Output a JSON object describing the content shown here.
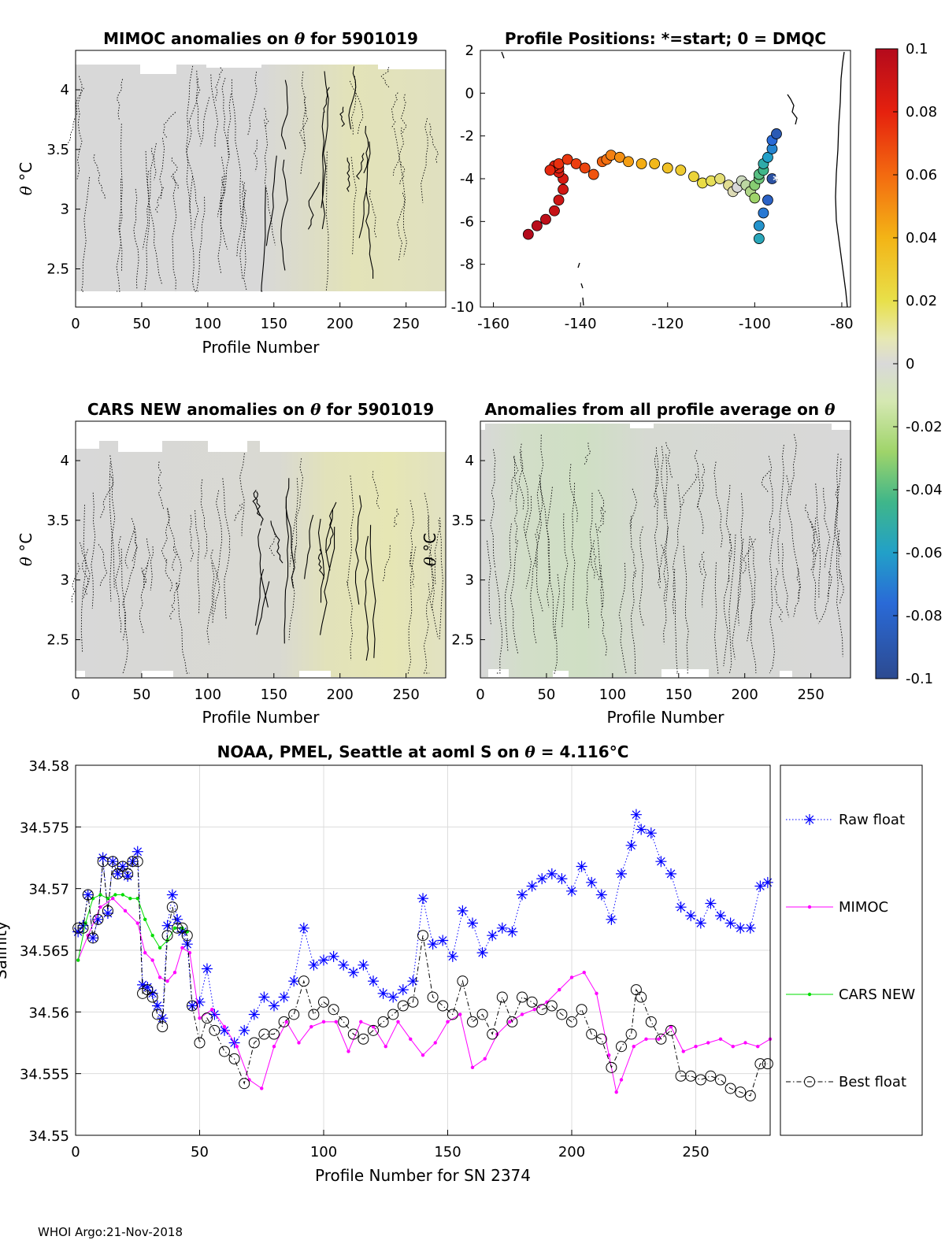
{
  "footer": "WHOI Argo:21-Nov-2018",
  "panels": {
    "mimoc": {
      "title_pre": "MIMOC anomalies on ",
      "title_theta": "θ",
      "title_post": "  for 5901019",
      "ylabel_theta": "θ",
      "ylabel_unit": "°C",
      "xlabel": "Profile Number",
      "xticks": [
        "0",
        "50",
        "100",
        "150",
        "200",
        "250"
      ],
      "yticks": [
        "2.5",
        "3",
        "3.5",
        "4"
      ],
      "xlim": [
        0,
        280
      ],
      "ylim": [
        2.18,
        4.33
      ]
    },
    "positions": {
      "title": "Profile Positions: *=start; 0 = DMQC",
      "xticks": [
        "-160",
        "-140",
        "-120",
        "-100",
        "-80"
      ],
      "yticks": [
        "2",
        "0",
        "-2",
        "-4",
        "-6",
        "-8",
        "-10"
      ],
      "xlim": [
        -163,
        -78
      ],
      "ylim": [
        -10,
        2
      ],
      "start_marker": "*",
      "track": {
        "lon": [
          -152,
          -150,
          -148,
          -146,
          -145,
          -144,
          -144,
          -145,
          -145,
          -146,
          -147,
          -145,
          -143,
          -141,
          -139,
          -137,
          -135,
          -134,
          -133,
          -131,
          -129,
          -126,
          -123,
          -120,
          -117,
          -114,
          -112,
          -110,
          -108,
          -106,
          -105,
          -104,
          -103,
          -102,
          -101,
          -100,
          -100,
          -99,
          -99,
          -98,
          -98,
          -97,
          -96,
          -96,
          -95,
          -96,
          -97,
          -98,
          -99,
          -99
        ],
        "lat": [
          -6.6,
          -6.2,
          -5.9,
          -5.5,
          -5.0,
          -4.5,
          -4.0,
          -3.7,
          -3.5,
          -3.4,
          -3.6,
          -3.3,
          -3.1,
          -3.3,
          -3.5,
          -3.8,
          -3.2,
          -3.1,
          -2.9,
          -3.0,
          -3.2,
          -3.3,
          -3.3,
          -3.5,
          -3.6,
          -3.9,
          -4.2,
          -4.1,
          -4.0,
          -4.3,
          -4.6,
          -4.4,
          -4.1,
          -4.3,
          -4.6,
          -4.9,
          -4.3,
          -4.0,
          -3.8,
          -3.6,
          -3.3,
          -3.0,
          -2.6,
          -2.2,
          -1.9,
          -4.0,
          -5.0,
          -5.6,
          -6.2,
          -6.8
        ],
        "anomaly": [
          0.1,
          0.098,
          0.096,
          0.093,
          0.09,
          0.088,
          0.086,
          0.084,
          0.082,
          0.08,
          0.078,
          0.076,
          0.074,
          0.072,
          0.07,
          0.066,
          0.062,
          0.058,
          0.054,
          0.05,
          0.046,
          0.042,
          0.038,
          0.034,
          0.03,
          0.026,
          0.022,
          0.018,
          0.014,
          0.01,
          0.005,
          0.0,
          -0.005,
          -0.01,
          -0.015,
          -0.02,
          -0.025,
          -0.03,
          -0.035,
          -0.04,
          -0.05,
          -0.06,
          -0.07,
          -0.08,
          -0.09,
          -0.095,
          -0.085,
          -0.075,
          -0.065,
          -0.055
        ]
      }
    },
    "cars": {
      "title_pre": "CARS NEW anomalies on ",
      "title_theta": "θ",
      "title_post": " for 5901019",
      "ylabel_theta": "θ",
      "ylabel_unit": "°C",
      "xlabel": "Profile Number",
      "xticks": [
        "0",
        "50",
        "100",
        "150",
        "200",
        "250"
      ],
      "yticks": [
        "2.5",
        "3",
        "3.5",
        "4"
      ],
      "xlim": [
        0,
        280
      ],
      "ylim": [
        2.18,
        4.33
      ]
    },
    "allprof": {
      "title_pre": "Anomalies from all profile average on ",
      "title_theta": "θ",
      "ylabel_theta": "θ",
      "ylabel_unit": "°C",
      "xlabel": "Profile Number",
      "xticks": [
        "0",
        "50",
        "100",
        "150",
        "200",
        "250"
      ],
      "yticks": [
        "2.5",
        "3",
        "3.5",
        "4"
      ],
      "xlim": [
        0,
        280
      ],
      "ylim": [
        2.18,
        4.33
      ]
    },
    "colorbar": {
      "ticks": [
        "0.1",
        "0.08",
        "0.06",
        "0.04",
        "0.02",
        "0",
        "-0.02",
        "-0.04",
        "-0.06",
        "-0.08",
        "-0.1"
      ],
      "range": [
        -0.1,
        0.1
      ]
    }
  },
  "chart_data": {
    "type": "line",
    "title_pre": "NOAA, PMEL, Seattle at aoml S on ",
    "title_theta": "θ",
    "title_post": " = 4.116°C",
    "xlabel": "Profile Number for SN 2374",
    "ylabel": "Salinity",
    "xlim": [
      0,
      280
    ],
    "ylim": [
      34.55,
      34.58
    ],
    "xticks": [
      "0",
      "50",
      "100",
      "150",
      "200",
      "250"
    ],
    "yticks": [
      "34.55",
      "34.555",
      "34.56",
      "34.565",
      "34.57",
      "34.575",
      "34.58"
    ],
    "grid": true,
    "legend_position": "right-outside",
    "series": [
      {
        "name": "Raw float",
        "color": "#0000ff",
        "x": [
          1,
          3,
          5,
          7,
          9,
          11,
          13,
          15,
          17,
          19,
          21,
          23,
          25,
          27,
          29,
          31,
          33,
          35,
          37,
          39,
          41,
          43,
          45,
          47,
          50,
          53,
          56,
          60,
          64,
          68,
          72,
          76,
          80,
          84,
          88,
          92,
          96,
          100,
          104,
          108,
          112,
          116,
          120,
          124,
          128,
          132,
          136,
          140,
          144,
          148,
          152,
          156,
          160,
          164,
          168,
          172,
          176,
          180,
          184,
          188,
          192,
          196,
          200,
          204,
          208,
          212,
          216,
          220,
          224,
          226,
          228,
          232,
          236,
          240,
          244,
          248,
          252,
          256,
          260,
          264,
          268,
          272,
          276,
          279
        ],
        "y": [
          34.5665,
          34.567,
          34.5695,
          34.566,
          34.5675,
          34.5725,
          34.568,
          34.5722,
          34.5712,
          34.5718,
          34.571,
          34.5722,
          34.573,
          34.5622,
          34.562,
          34.5615,
          34.5605,
          34.5595,
          34.567,
          34.5695,
          34.5675,
          34.5665,
          34.5655,
          34.5605,
          34.5608,
          34.5635,
          34.5598,
          34.5585,
          34.5575,
          34.5585,
          34.5598,
          34.5612,
          34.5605,
          34.5612,
          34.5625,
          34.5668,
          34.5638,
          34.5642,
          34.5645,
          34.5638,
          34.5632,
          34.5638,
          34.5625,
          34.5615,
          34.5612,
          34.5618,
          34.5625,
          34.5692,
          34.5655,
          34.5658,
          34.5645,
          34.5682,
          34.5672,
          34.5648,
          34.5662,
          34.5668,
          34.5665,
          34.5695,
          34.5702,
          34.5708,
          34.5712,
          34.5708,
          34.5698,
          34.5718,
          34.5705,
          34.5695,
          34.5675,
          34.5712,
          34.5735,
          34.576,
          34.5748,
          34.5745,
          34.5722,
          34.5712,
          34.5685,
          34.5678,
          34.5672,
          34.5688,
          34.5678,
          34.5672,
          34.5668,
          34.5668,
          34.5702,
          34.5705
        ]
      },
      {
        "name": "MIMOC",
        "color": "#ff00ff",
        "x": [
          1,
          5,
          10,
          15,
          20,
          25,
          28,
          31,
          34,
          37,
          40,
          43,
          46,
          50,
          55,
          60,
          65,
          70,
          75,
          80,
          85,
          90,
          95,
          100,
          105,
          110,
          115,
          120,
          125,
          130,
          135,
          140,
          145,
          150,
          155,
          160,
          165,
          170,
          175,
          180,
          185,
          190,
          195,
          200,
          205,
          210,
          215,
          218,
          220,
          225,
          230,
          235,
          240,
          245,
          250,
          255,
          260,
          265,
          270,
          275,
          280
        ],
        "y": [
          34.5642,
          34.5662,
          34.5685,
          34.5692,
          34.5682,
          34.5672,
          34.5648,
          34.5642,
          34.5628,
          34.5625,
          34.5632,
          34.5652,
          34.5648,
          34.5595,
          34.5602,
          34.5588,
          34.5572,
          34.5545,
          34.5538,
          34.5572,
          34.5592,
          34.5575,
          34.5588,
          34.5592,
          34.5592,
          34.5568,
          34.5592,
          34.5588,
          34.5572,
          34.5592,
          34.5578,
          34.5565,
          34.5575,
          34.5592,
          34.5598,
          34.5555,
          34.5562,
          34.5582,
          34.5592,
          34.5598,
          34.5602,
          34.5608,
          34.5618,
          34.5628,
          34.5632,
          34.5615,
          34.5565,
          34.5535,
          34.5545,
          34.5572,
          34.5578,
          34.5578,
          34.5588,
          34.5568,
          34.5572,
          34.5575,
          34.5578,
          34.5572,
          34.5575,
          34.5572,
          34.5578
        ]
      },
      {
        "name": "CARS NEW",
        "color": "#00dd00",
        "x": [
          1,
          4,
          7,
          10,
          13,
          16,
          19,
          22,
          25,
          28,
          31,
          34,
          37,
          40,
          43,
          45
        ],
        "y": [
          34.5642,
          34.5672,
          34.5692,
          34.5695,
          34.5692,
          34.5695,
          34.5695,
          34.5692,
          34.5692,
          34.5675,
          34.5662,
          34.5652,
          34.5658,
          34.5668,
          34.5668,
          34.5665
        ]
      },
      {
        "name": "Best float",
        "color": "#000000",
        "x": [
          1,
          3,
          5,
          7,
          9,
          11,
          13,
          15,
          17,
          19,
          21,
          23,
          25,
          27,
          29,
          31,
          33,
          35,
          37,
          39,
          41,
          43,
          45,
          47,
          50,
          53,
          56,
          60,
          64,
          68,
          72,
          76,
          80,
          84,
          88,
          92,
          96,
          100,
          104,
          108,
          112,
          116,
          120,
          124,
          128,
          132,
          136,
          140,
          144,
          148,
          152,
          156,
          160,
          164,
          168,
          172,
          176,
          180,
          184,
          188,
          192,
          196,
          200,
          204,
          208,
          212,
          216,
          220,
          224,
          226,
          228,
          232,
          236,
          240,
          244,
          248,
          252,
          256,
          260,
          264,
          268,
          272,
          276,
          279
        ],
        "y": [
          34.5668,
          34.5668,
          34.5695,
          34.566,
          34.5675,
          34.5722,
          34.5682,
          34.5722,
          34.5712,
          34.5718,
          34.5712,
          34.5722,
          34.5722,
          34.5615,
          34.5618,
          34.5612,
          34.5598,
          34.5588,
          34.5662,
          34.5685,
          34.5668,
          34.5668,
          34.5662,
          34.5605,
          34.5575,
          34.5595,
          34.5585,
          34.5568,
          34.5562,
          34.5542,
          34.5575,
          34.5582,
          34.5582,
          34.5592,
          34.5598,
          34.5625,
          34.5598,
          34.5608,
          34.5602,
          34.5592,
          34.5582,
          34.5578,
          34.5585,
          34.5592,
          34.5598,
          34.5605,
          34.5608,
          34.5662,
          34.5612,
          34.5605,
          34.5598,
          34.5625,
          34.5592,
          34.5598,
          34.5582,
          34.5612,
          34.5592,
          34.5612,
          34.5608,
          34.5602,
          34.5605,
          34.5598,
          34.5592,
          34.5602,
          34.5582,
          34.5578,
          34.5555,
          34.5572,
          34.5582,
          34.5618,
          34.5612,
          34.5592,
          34.5578,
          34.5585,
          34.5548,
          34.5548,
          34.5545,
          34.5548,
          34.5545,
          34.5538,
          34.5535,
          34.5532,
          34.5558,
          34.5558
        ]
      }
    ]
  }
}
